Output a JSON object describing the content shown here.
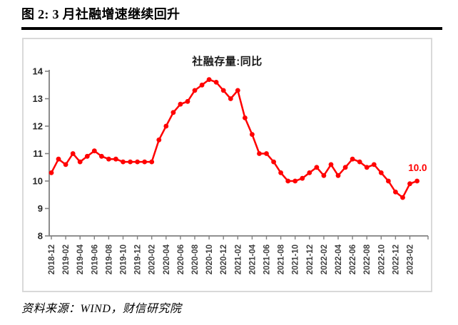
{
  "page": {
    "title": "图 2: 3 月社融增速继续回升",
    "source": "资料来源：WIND，财信研究院"
  },
  "chart_data": {
    "type": "line",
    "title": "社融存量:同比",
    "xlabel": "",
    "ylabel": "",
    "unit": "%",
    "grid": "off",
    "legend_position": "top-center",
    "line_color": "#ff0000",
    "marker": "circle",
    "axis_color": "#808080",
    "tick_label_color": "#3f3f3f",
    "ylim": [
      8,
      14
    ],
    "y_ticks": [
      8,
      9,
      10,
      11,
      12,
      13,
      14
    ],
    "x": [
      "2018-12",
      "2019-01",
      "2019-02",
      "2019-03",
      "2019-04",
      "2019-05",
      "2019-06",
      "2019-07",
      "2019-08",
      "2019-09",
      "2019-10",
      "2019-11",
      "2019-12",
      "2020-01",
      "2020-02",
      "2020-03",
      "2020-04",
      "2020-05",
      "2020-06",
      "2020-07",
      "2020-08",
      "2020-09",
      "2020-10",
      "2020-11",
      "2020-12",
      "2021-01",
      "2021-02",
      "2021-03",
      "2021-04",
      "2021-05",
      "2021-06",
      "2021-07",
      "2021-08",
      "2021-09",
      "2021-10",
      "2021-11",
      "2021-12",
      "2022-01",
      "2022-02",
      "2022-03",
      "2022-04",
      "2022-05",
      "2022-06",
      "2022-07",
      "2022-08",
      "2022-09",
      "2022-10",
      "2022-11",
      "2022-12",
      "2023-01",
      "2023-02",
      "2023-03"
    ],
    "values": [
      10.3,
      10.8,
      10.6,
      11.0,
      10.7,
      10.9,
      11.1,
      10.9,
      10.8,
      10.8,
      10.7,
      10.7,
      10.7,
      10.7,
      10.7,
      11.5,
      12.0,
      12.5,
      12.8,
      12.9,
      13.3,
      13.5,
      13.7,
      13.6,
      13.3,
      13.0,
      13.3,
      12.3,
      11.7,
      11.0,
      11.0,
      10.7,
      10.3,
      10.0,
      10.0,
      10.1,
      10.3,
      10.5,
      10.2,
      10.6,
      10.2,
      10.5,
      10.8,
      10.7,
      10.5,
      10.6,
      10.3,
      10.0,
      9.6,
      9.4,
      9.9,
      10.0
    ],
    "x_tick_labels": [
      "2018-12",
      "2019-02",
      "2019-04",
      "2019-06",
      "2019-08",
      "2019-10",
      "2019-12",
      "2020-02",
      "2020-04",
      "2020-06",
      "2020-08",
      "2020-10",
      "2020-12",
      "2021-02",
      "2021-04",
      "2021-06",
      "2021-08",
      "2021-10",
      "2021-12",
      "2022-02",
      "2022-04",
      "2022-06",
      "2022-08",
      "2022-10",
      "2022-12",
      "2023-02"
    ],
    "last_point_label": "10.0"
  }
}
